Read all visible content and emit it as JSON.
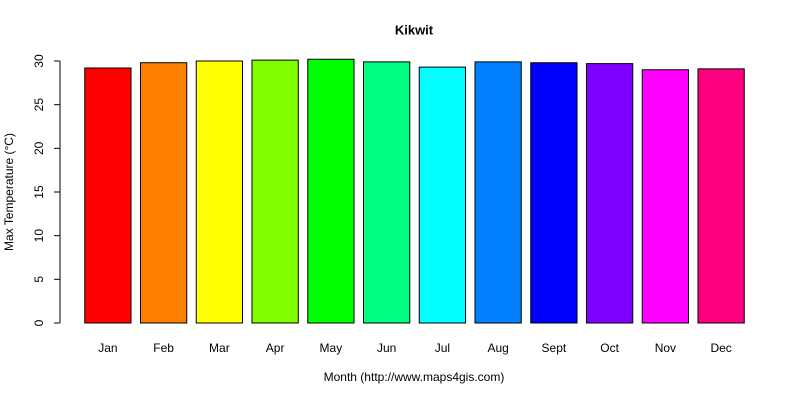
{
  "chart_data": {
    "type": "bar",
    "title": "Kikwit",
    "x_label": "Month (http://www.maps4gis.com)",
    "y_label": "Max Temperature (°C)",
    "categories": [
      "Jan",
      "Feb",
      "Mar",
      "Apr",
      "May",
      "Jun",
      "Jul",
      "Aug",
      "Sept",
      "Oct",
      "Nov",
      "Dec"
    ],
    "values": [
      29.2,
      29.8,
      30.0,
      30.1,
      30.2,
      29.9,
      29.3,
      29.9,
      29.8,
      29.7,
      29.0,
      29.1
    ],
    "colors": [
      "#ff0000",
      "#ff8000",
      "#ffff00",
      "#80ff00",
      "#00ff00",
      "#00ff80",
      "#00ffff",
      "#0080ff",
      "#0000ff",
      "#8000ff",
      "#ff00ff",
      "#ff0080"
    ],
    "ylim": [
      0,
      30
    ],
    "yticks": [
      0,
      5,
      10,
      15,
      20,
      25,
      30
    ]
  }
}
